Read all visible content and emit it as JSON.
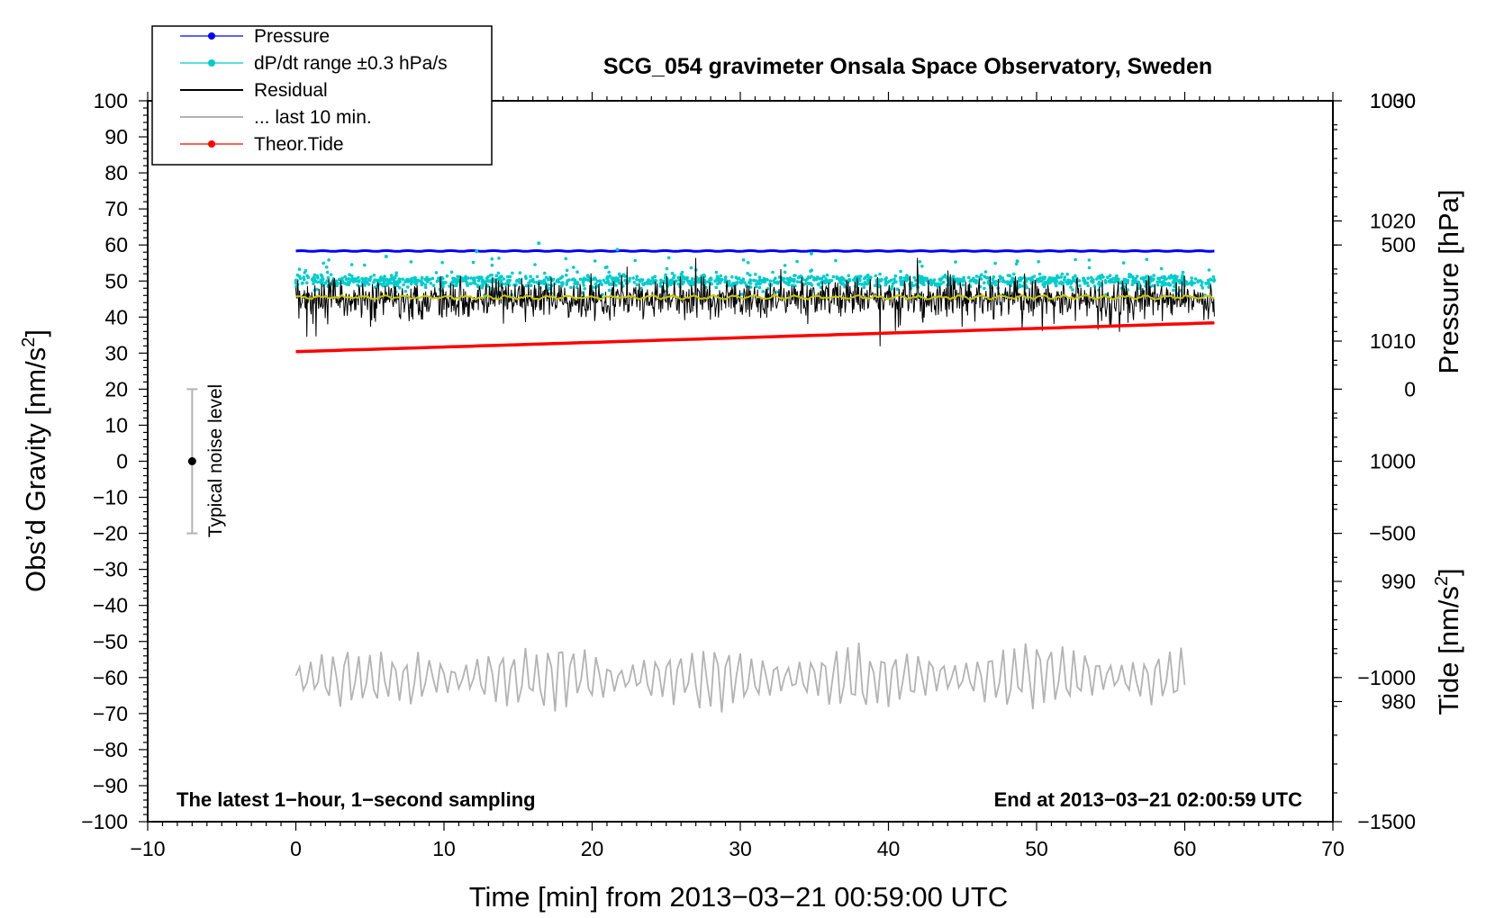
{
  "chart_data": {
    "type": "line",
    "title": "SCG_054 gravimeter Onsala Space Observatory, Sweden",
    "xlabel": "Time [min] from 2013−03−21 00:59:00 UTC",
    "ylabel_left": "Obs’d Gravity [nm/s",
    "ylabel_left_sup": "2",
    "ylabel_left_end": "]",
    "ylabel_pressure": "Pressure [hPa]",
    "ylabel_tide": "Tide [nm/s",
    "ylabel_tide_sup": "2",
    "ylabel_tide_end": "]",
    "xlim": [
      -10,
      70
    ],
    "ylim": [
      -100,
      100
    ],
    "x_ticks": [
      "−10",
      "0",
      "10",
      "20",
      "30",
      "40",
      "50",
      "60",
      "70"
    ],
    "x_tick_values": [
      -10,
      0,
      10,
      20,
      30,
      40,
      50,
      60,
      70
    ],
    "y_ticks": [
      "100",
      "90",
      "80",
      "70",
      "60",
      "50",
      "40",
      "30",
      "20",
      "10",
      "0",
      "−10",
      "−20",
      "−30",
      "−40",
      "−50",
      "−60",
      "−70",
      "−80",
      "−90",
      "−100"
    ],
    "y_tick_values": [
      100,
      90,
      80,
      70,
      60,
      50,
      40,
      30,
      20,
      10,
      0,
      -10,
      -20,
      -30,
      -40,
      -50,
      -60,
      -70,
      -80,
      -90,
      -100
    ],
    "pressure_axis": {
      "range": [
        970,
        1030
      ],
      "ticks": [
        "1030",
        "1020",
        "1010",
        "1000",
        "990",
        "980"
      ],
      "tick_values": [
        1030,
        1020,
        1010,
        1000,
        990,
        980
      ]
    },
    "tide_axis": {
      "range": [
        -1500,
        1000
      ],
      "ticks": [
        "1000",
        "500",
        "0",
        "−500",
        "−1000",
        "−1500"
      ],
      "tick_values": [
        1000,
        500,
        0,
        -500,
        -1000,
        -1500
      ]
    },
    "legend": [
      {
        "label": "Pressure",
        "color": "#0000ff",
        "style": "line-dot"
      },
      {
        "label": "dP/dt range ±0.3 hPa/s",
        "color": "#00cccc",
        "style": "line-dot"
      },
      {
        "label": "Residual",
        "color": "#000000",
        "style": "line"
      },
      {
        "label": "... last 10 min.",
        "color": "#b3b3b3",
        "style": "line"
      },
      {
        "label": "Theor.Tide",
        "color": "#ff0000",
        "style": "line-dot"
      }
    ],
    "series": [
      {
        "name": "Pressure",
        "color": "#0000ff",
        "axis": "pressure",
        "x": [
          0,
          62
        ],
        "values": [
          1017.5,
          1017.5
        ]
      },
      {
        "name": "dP/dt range ±0.3 hPa/s",
        "color": "#00cccc",
        "axis": "left",
        "x": [
          0,
          62
        ],
        "values": [
          50,
          50
        ],
        "noise": 1.2,
        "outlier_max": 61
      },
      {
        "name": "Residual",
        "color": "#000000",
        "axis": "left",
        "x": [
          0,
          62
        ],
        "values": [
          45,
          45
        ],
        "noise": 5
      },
      {
        "name": "Residual smoothed",
        "color": "#c8c800",
        "axis": "left",
        "x": [
          0,
          62
        ],
        "values": [
          45.5,
          45.5
        ]
      },
      {
        "name": "... last 10 min.",
        "color": "#b3b3b3",
        "axis": "left",
        "x": [
          0,
          60
        ],
        "values": [
          -60,
          -60
        ],
        "noise": 6
      },
      {
        "name": "Theor.Tide",
        "color": "#ff0000",
        "axis": "tide",
        "x": [
          0,
          62
        ],
        "values": [
          130,
          230
        ]
      }
    ],
    "noise_bar": {
      "label": "Typical noise level",
      "x": -7,
      "center": 0,
      "range": [
        -20,
        20
      ]
    },
    "notes": {
      "left": "The latest 1−hour, 1−second sampling",
      "right": "End at 2013−03−21 02:00:59 UTC"
    }
  }
}
